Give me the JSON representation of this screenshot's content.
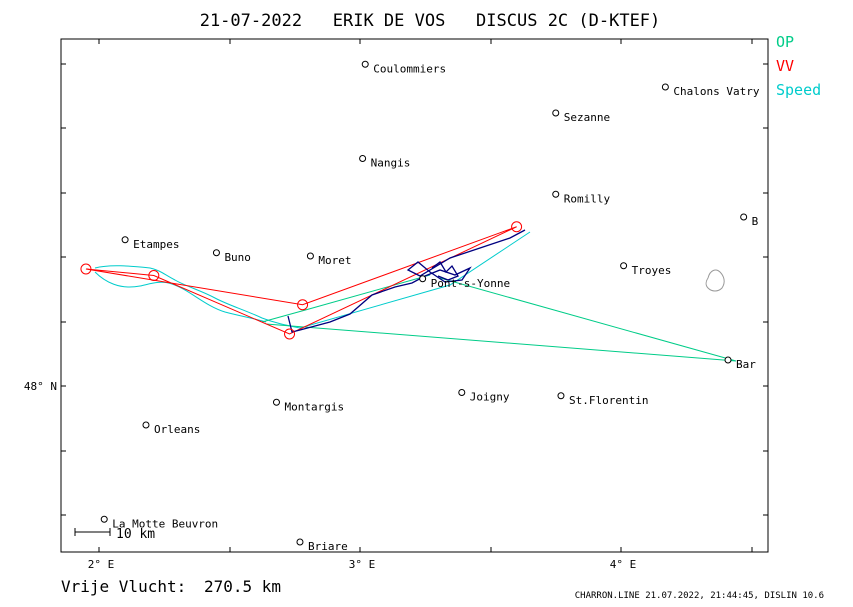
{
  "title": "21-07-2022   ERIK DE VOS   DISCUS 2C (D-KTEF)",
  "legend": [
    {
      "label": "OP",
      "color": "#00cc88"
    },
    {
      "label": "VV",
      "color": "#ff0000"
    },
    {
      "label": "Speed",
      "color": "#00cccc"
    }
  ],
  "axes": {
    "x_ticks": [
      {
        "lon": 2.0,
        "label": "2° E"
      },
      {
        "lon": 3.0,
        "label": "3° E"
      },
      {
        "lon": 4.0,
        "label": "4° E"
      }
    ],
    "y_ticks": [
      {
        "lat": 48.0,
        "label": "48° N"
      }
    ]
  },
  "places": [
    {
      "name": "Coulommiers",
      "lon": 3.02,
      "lat": 48.99
    },
    {
      "name": "Chalons Vatry",
      "lon": 4.17,
      "lat": 48.92
    },
    {
      "name": "Sezanne",
      "lon": 3.75,
      "lat": 48.84
    },
    {
      "name": "Nangis",
      "lon": 3.01,
      "lat": 48.7
    },
    {
      "name": "Romilly",
      "lon": 3.75,
      "lat": 48.59
    },
    {
      "name": "B",
      "lon": 4.47,
      "lat": 48.52
    },
    {
      "name": "Etampes",
      "lon": 2.1,
      "lat": 48.45
    },
    {
      "name": "Buno",
      "lon": 2.45,
      "lat": 48.41
    },
    {
      "name": "Moret",
      "lon": 2.81,
      "lat": 48.4
    },
    {
      "name": "Troyes",
      "lon": 4.01,
      "lat": 48.37
    },
    {
      "name": "Pont-s-Yonne",
      "lon": 3.24,
      "lat": 48.33
    },
    {
      "name": "Bar",
      "lon": 4.41,
      "lat": 48.08
    },
    {
      "name": "Joigny",
      "lon": 3.39,
      "lat": 47.98
    },
    {
      "name": "St.Florentin",
      "lon": 3.77,
      "lat": 47.97
    },
    {
      "name": "Montargis",
      "lon": 2.68,
      "lat": 47.95
    },
    {
      "name": "Orleans",
      "lon": 2.18,
      "lat": 47.88
    },
    {
      "name": "La Motte Beuvron",
      "lon": 2.02,
      "lat": 47.59
    },
    {
      "name": "Briare",
      "lon": 2.77,
      "lat": 47.52
    }
  ],
  "turnpoints": [
    {
      "lon": 3.6,
      "lat": 48.49
    },
    {
      "lon": 1.95,
      "lat": 48.36
    },
    {
      "lon": 2.21,
      "lat": 48.34
    },
    {
      "lon": 2.73,
      "lat": 48.16
    },
    {
      "lon": 2.78,
      "lat": 48.25
    }
  ],
  "scale_bar": {
    "label": "10 km"
  },
  "distance": {
    "label": "Vrije Vlucht:",
    "value": "270.5 km"
  },
  "footer": "CHARRON.LINE 21.07.2022, 21:44:45, DISLIN 10.6",
  "colors": {
    "task_line": "#ff0000",
    "op_line": "#00cc88",
    "speed_track": "#00cccc",
    "climb_track": "#000080",
    "frame": "#000000"
  }
}
